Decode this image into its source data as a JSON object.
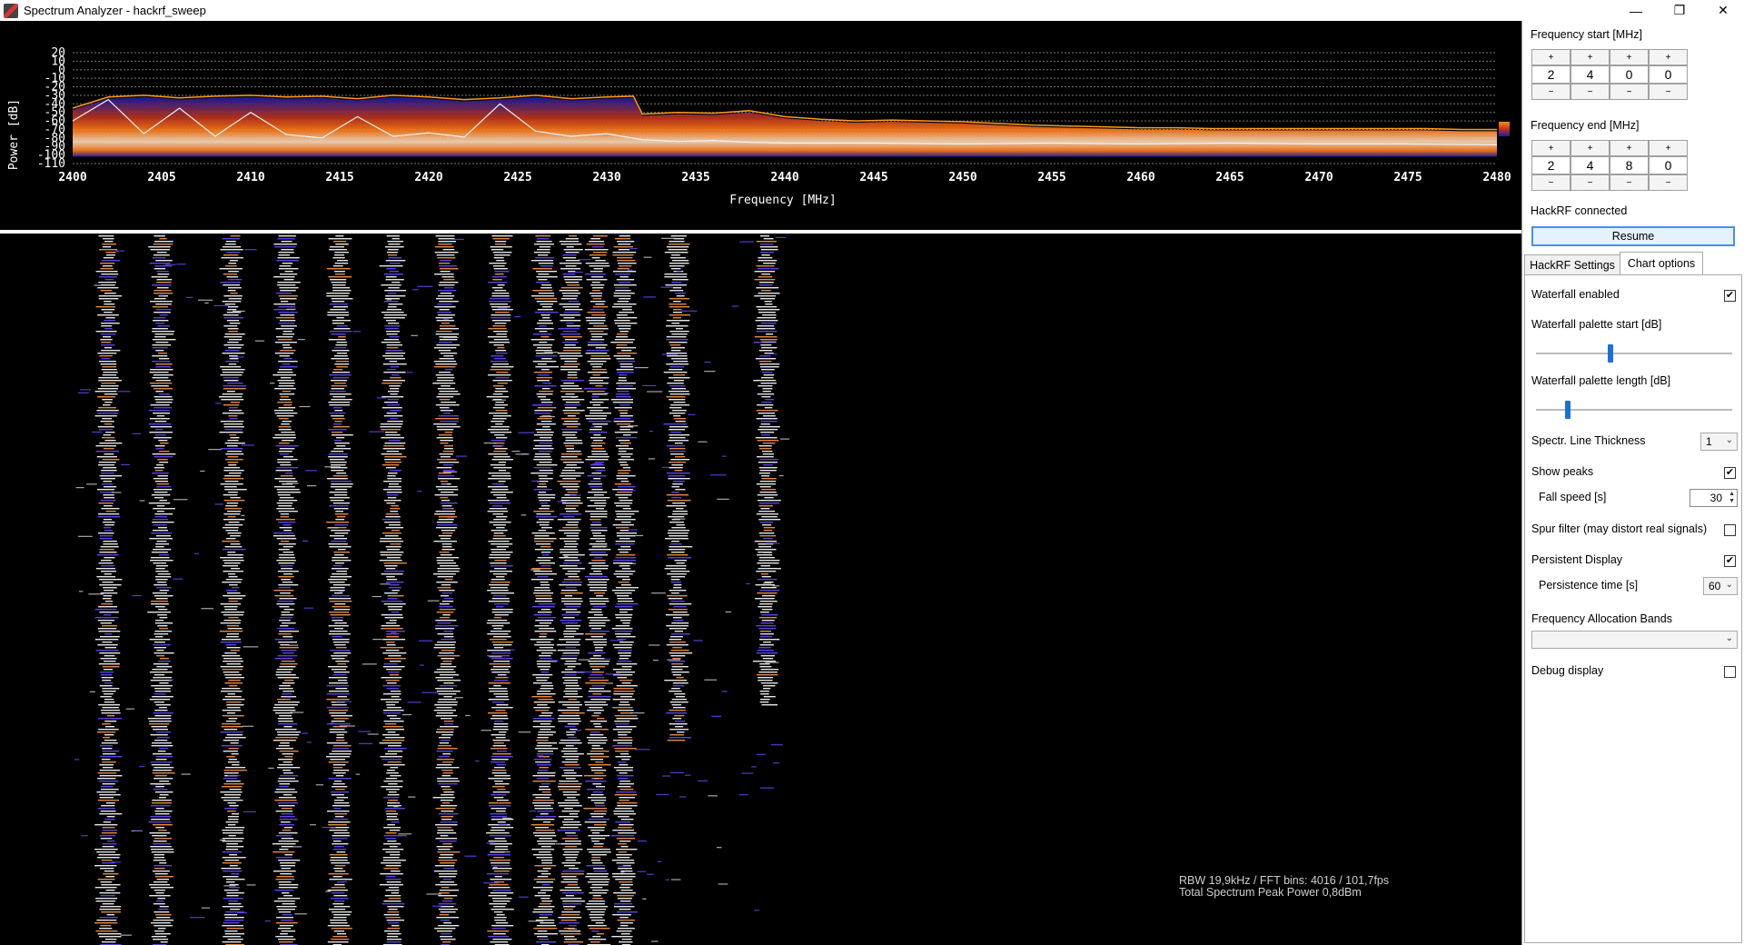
{
  "window": {
    "title": "Spectrum Analyzer - hackrf_sweep",
    "minimize": "—",
    "maximize": "❐",
    "close": "✕"
  },
  "chart_data": {
    "type": "line",
    "title": "",
    "xlabel": "Frequency [MHz]",
    "ylabel": "Power [dB]",
    "xlim": [
      2400,
      2480
    ],
    "ylim": [
      -110,
      20
    ],
    "xticks": [
      "2400",
      "2405",
      "2410",
      "2415",
      "2420",
      "2425",
      "2430",
      "2435",
      "2440",
      "2445",
      "2450",
      "2455",
      "2460",
      "2465",
      "2470",
      "2475",
      "2480"
    ],
    "yticks": [
      "20",
      "10",
      "0",
      "-10",
      "-20",
      "-30",
      "-40",
      "-50",
      "-60",
      "-70",
      "-80",
      "-90",
      "-100",
      "-110"
    ],
    "series": [
      {
        "name": "",
        "color": "#ff9a1a",
        "x": [
          2400,
          2402,
          2404,
          2406,
          2408,
          2410,
          2412,
          2414,
          2416,
          2418,
          2420,
          2422,
          2424,
          2426,
          2428,
          2430,
          2431.5,
          2432,
          2434,
          2436,
          2438,
          2440,
          2442,
          2444,
          2446,
          2448,
          2450,
          2452,
          2454,
          2456,
          2458,
          2460,
          2462,
          2464,
          2466,
          2468,
          2470,
          2472,
          2474,
          2476,
          2478,
          2480
        ],
        "y": [
          -45,
          -32,
          -30,
          -33,
          -31,
          -30,
          -32,
          -31,
          -34,
          -30,
          -32,
          -35,
          -33,
          -30,
          -34,
          -32,
          -31,
          -52,
          -50,
          -51,
          -48,
          -55,
          -58,
          -60,
          -59,
          -60,
          -61,
          -63,
          -65,
          -66,
          -67,
          -68,
          -68,
          -69,
          -69,
          -69,
          -69,
          -69,
          -69,
          -69,
          -70,
          -70
        ]
      },
      {
        "name": "",
        "color": "#f2f2f2",
        "x": [
          2400,
          2402,
          2404,
          2406,
          2408,
          2410,
          2412,
          2414,
          2416,
          2418,
          2420,
          2422,
          2424,
          2426,
          2428,
          2430,
          2432,
          2434,
          2436,
          2438,
          2440,
          2445,
          2450,
          2455,
          2460,
          2465,
          2470,
          2475,
          2480
        ],
        "y": [
          -60,
          -35,
          -75,
          -45,
          -78,
          -50,
          -76,
          -80,
          -55,
          -78,
          -74,
          -79,
          -40,
          -72,
          -78,
          -75,
          -82,
          -84,
          -83,
          -85,
          -86,
          -86,
          -87,
          -86,
          -87,
          -86,
          -87,
          -87,
          -88
        ]
      }
    ]
  },
  "waterfall": {
    "enabled": true
  },
  "stats": {
    "line1": "RBW 19,9kHz / FFT bins: 4016 / 101,7fps",
    "line2": "Total Spectrum Peak Power 0,8dBm"
  },
  "panel": {
    "freq_start_label": "Frequency start [MHz]",
    "freq_start_digits": [
      "2",
      "4",
      "0",
      "0"
    ],
    "freq_end_label": "Frequency end [MHz]",
    "freq_end_digits": [
      "2",
      "4",
      "8",
      "0"
    ],
    "plus": "+",
    "minus": "−",
    "status": "HackRF connected",
    "resume": "Resume",
    "tabs": {
      "hackrf": "HackRF Settings",
      "chart": "Chart options"
    },
    "options": {
      "waterfall_enabled": {
        "label": "Waterfall enabled",
        "checked": true
      },
      "palette_start": {
        "label": "Waterfall palette start [dB]",
        "value_fraction": 0.38
      },
      "palette_length": {
        "label": "Waterfall palette length [dB]",
        "value_fraction": 0.16
      },
      "line_thickness": {
        "label": "Spectr. Line Thickness",
        "value": "1"
      },
      "show_peaks": {
        "label": "Show peaks",
        "checked": true
      },
      "fall_speed": {
        "label": "Fall speed [s]",
        "value": "30"
      },
      "spur_filter": {
        "label": "Spur filter (may distort real signals)",
        "checked": false
      },
      "persistent_display": {
        "label": "Persistent Display",
        "checked": true
      },
      "persistence_time": {
        "label": "Persistence time [s]",
        "value": "60"
      },
      "allocation_bands": {
        "label": "Frequency Allocation Bands",
        "value": ""
      },
      "debug_display": {
        "label": "Debug display",
        "checked": false
      }
    },
    "check_mark": "✔"
  }
}
